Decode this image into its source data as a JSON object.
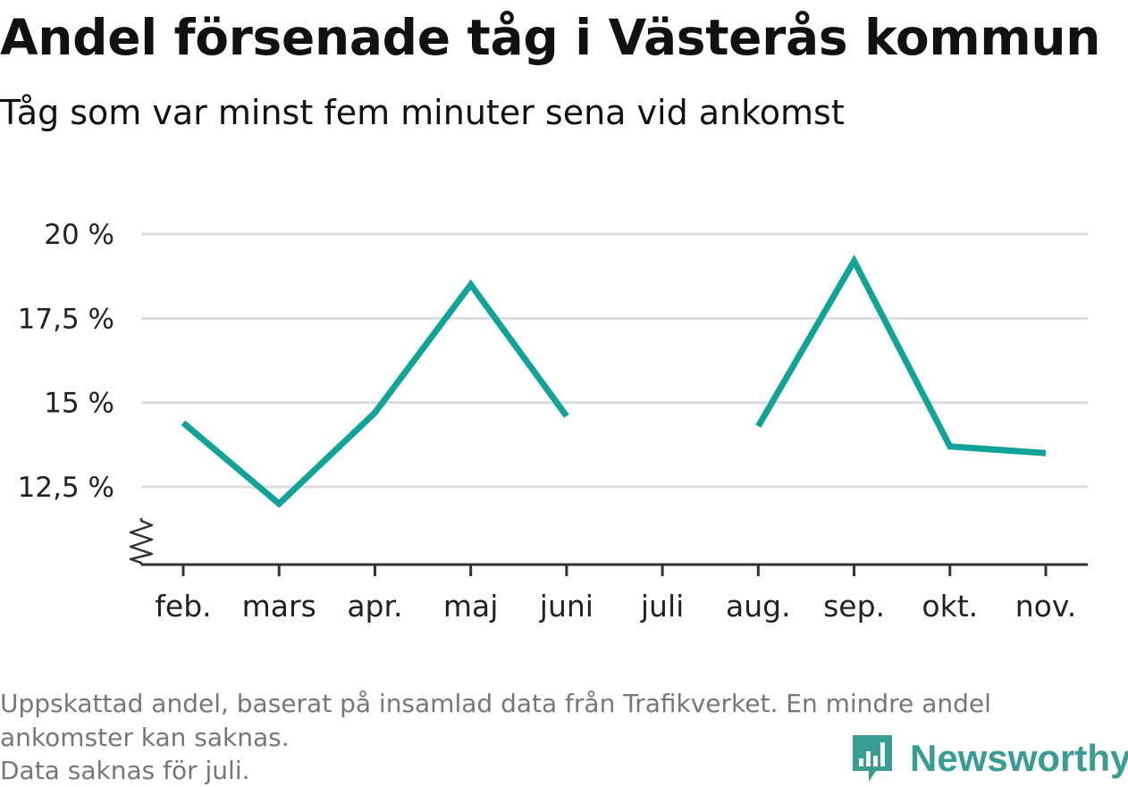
{
  "title": "Andel försenade tåg i Västerås kommun",
  "subtitle": "Tåg som var minst fem minuter sena vid ankomst",
  "footnotes": [
    "Uppskattad andel, baserat på insamlad data från Trafikverket. En mindre andel",
    "ankomster kan saknas.",
    "Data saknas för juli."
  ],
  "logo": {
    "text": "Newsworthy",
    "icon": "newsworthy-bar-chart-icon"
  },
  "colors": {
    "line": "#12a398",
    "grid": "#dddddd",
    "axis": "#333333",
    "logo": "#3a9d94"
  },
  "chart_data": {
    "type": "line",
    "title": "Andel försenade tåg i Västerås kommun",
    "subtitle": "Tåg som var minst fem minuter sena vid ankomst",
    "xlabel": "",
    "ylabel": "",
    "categories": [
      "feb.",
      "mars",
      "apr.",
      "maj",
      "juni",
      "juli",
      "aug.",
      "sep.",
      "okt.",
      "nov."
    ],
    "series": [
      {
        "values": [
          14.4,
          12.0,
          14.7,
          18.5,
          14.6,
          null,
          14.3,
          19.2,
          13.7,
          13.5
        ]
      }
    ],
    "y_ticks": [
      12.5,
      15,
      17.5,
      20
    ],
    "y_tick_labels": [
      "12,5 %",
      "15 %",
      "17,5 %",
      "20 %"
    ],
    "ylim": [
      10.25,
      20
    ],
    "y_axis_break": true,
    "grid": true,
    "legend": "none"
  }
}
